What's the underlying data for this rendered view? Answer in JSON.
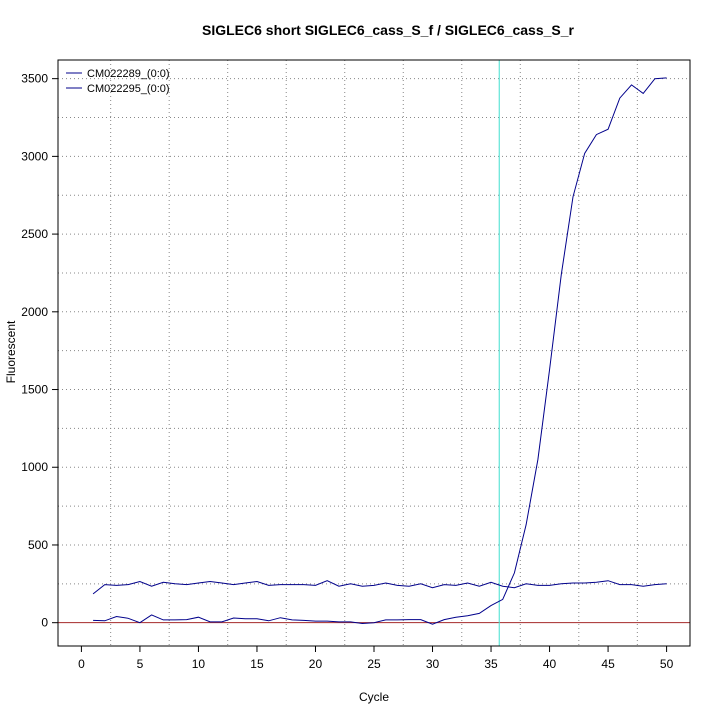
{
  "chart_data": {
    "type": "line",
    "title": "SIGLEC6 short SIGLEC6_cass_S_f / SIGLEC6_cass_S_r",
    "xlabel": "Cycle",
    "ylabel": "Fluorescent",
    "xlim": [
      -2,
      52
    ],
    "ylim": [
      -150,
      3620
    ],
    "x_ticks": [
      0,
      5,
      10,
      15,
      20,
      25,
      30,
      35,
      40,
      45,
      50
    ],
    "y_ticks": [
      0,
      500,
      1000,
      1500,
      2000,
      2500,
      3000,
      3500
    ],
    "threshold_x": 35.7,
    "baseline_y": 0,
    "grid": true,
    "legend_position": "top-left",
    "colors": {
      "series": "#00008b",
      "threshold": "#40e0d0",
      "baseline": "#a52a2a",
      "grid": "#888888"
    },
    "x": [
      1,
      2,
      3,
      4,
      5,
      6,
      7,
      8,
      9,
      10,
      11,
      12,
      13,
      14,
      15,
      16,
      17,
      18,
      19,
      20,
      21,
      22,
      23,
      24,
      25,
      26,
      27,
      28,
      29,
      30,
      31,
      32,
      33,
      34,
      35,
      36,
      37,
      38,
      39,
      40,
      41,
      42,
      43,
      44,
      45,
      46,
      47,
      48,
      49,
      50
    ],
    "series": [
      {
        "name": "CM022289_(0:0)",
        "values": [
          15,
          12,
          40,
          28,
          0,
          50,
          18,
          18,
          20,
          35,
          5,
          5,
          30,
          25,
          25,
          12,
          32,
          18,
          15,
          10,
          10,
          5,
          5,
          -5,
          0,
          18,
          18,
          20,
          20,
          -10,
          20,
          35,
          45,
          60,
          110,
          150,
          320,
          630,
          1050,
          1630,
          2240,
          2740,
          3020,
          3140,
          3175,
          3375,
          3460,
          3405,
          3500,
          3505
        ]
      },
      {
        "name": "CM022295_(0:0)",
        "values": [
          185,
          245,
          240,
          245,
          265,
          235,
          260,
          250,
          245,
          255,
          265,
          255,
          245,
          255,
          265,
          240,
          245,
          245,
          245,
          240,
          270,
          235,
          250,
          235,
          240,
          255,
          240,
          235,
          250,
          225,
          245,
          240,
          255,
          235,
          260,
          235,
          225,
          250,
          240,
          240,
          250,
          255,
          255,
          260,
          270,
          245,
          245,
          235,
          245,
          250
        ]
      }
    ]
  }
}
